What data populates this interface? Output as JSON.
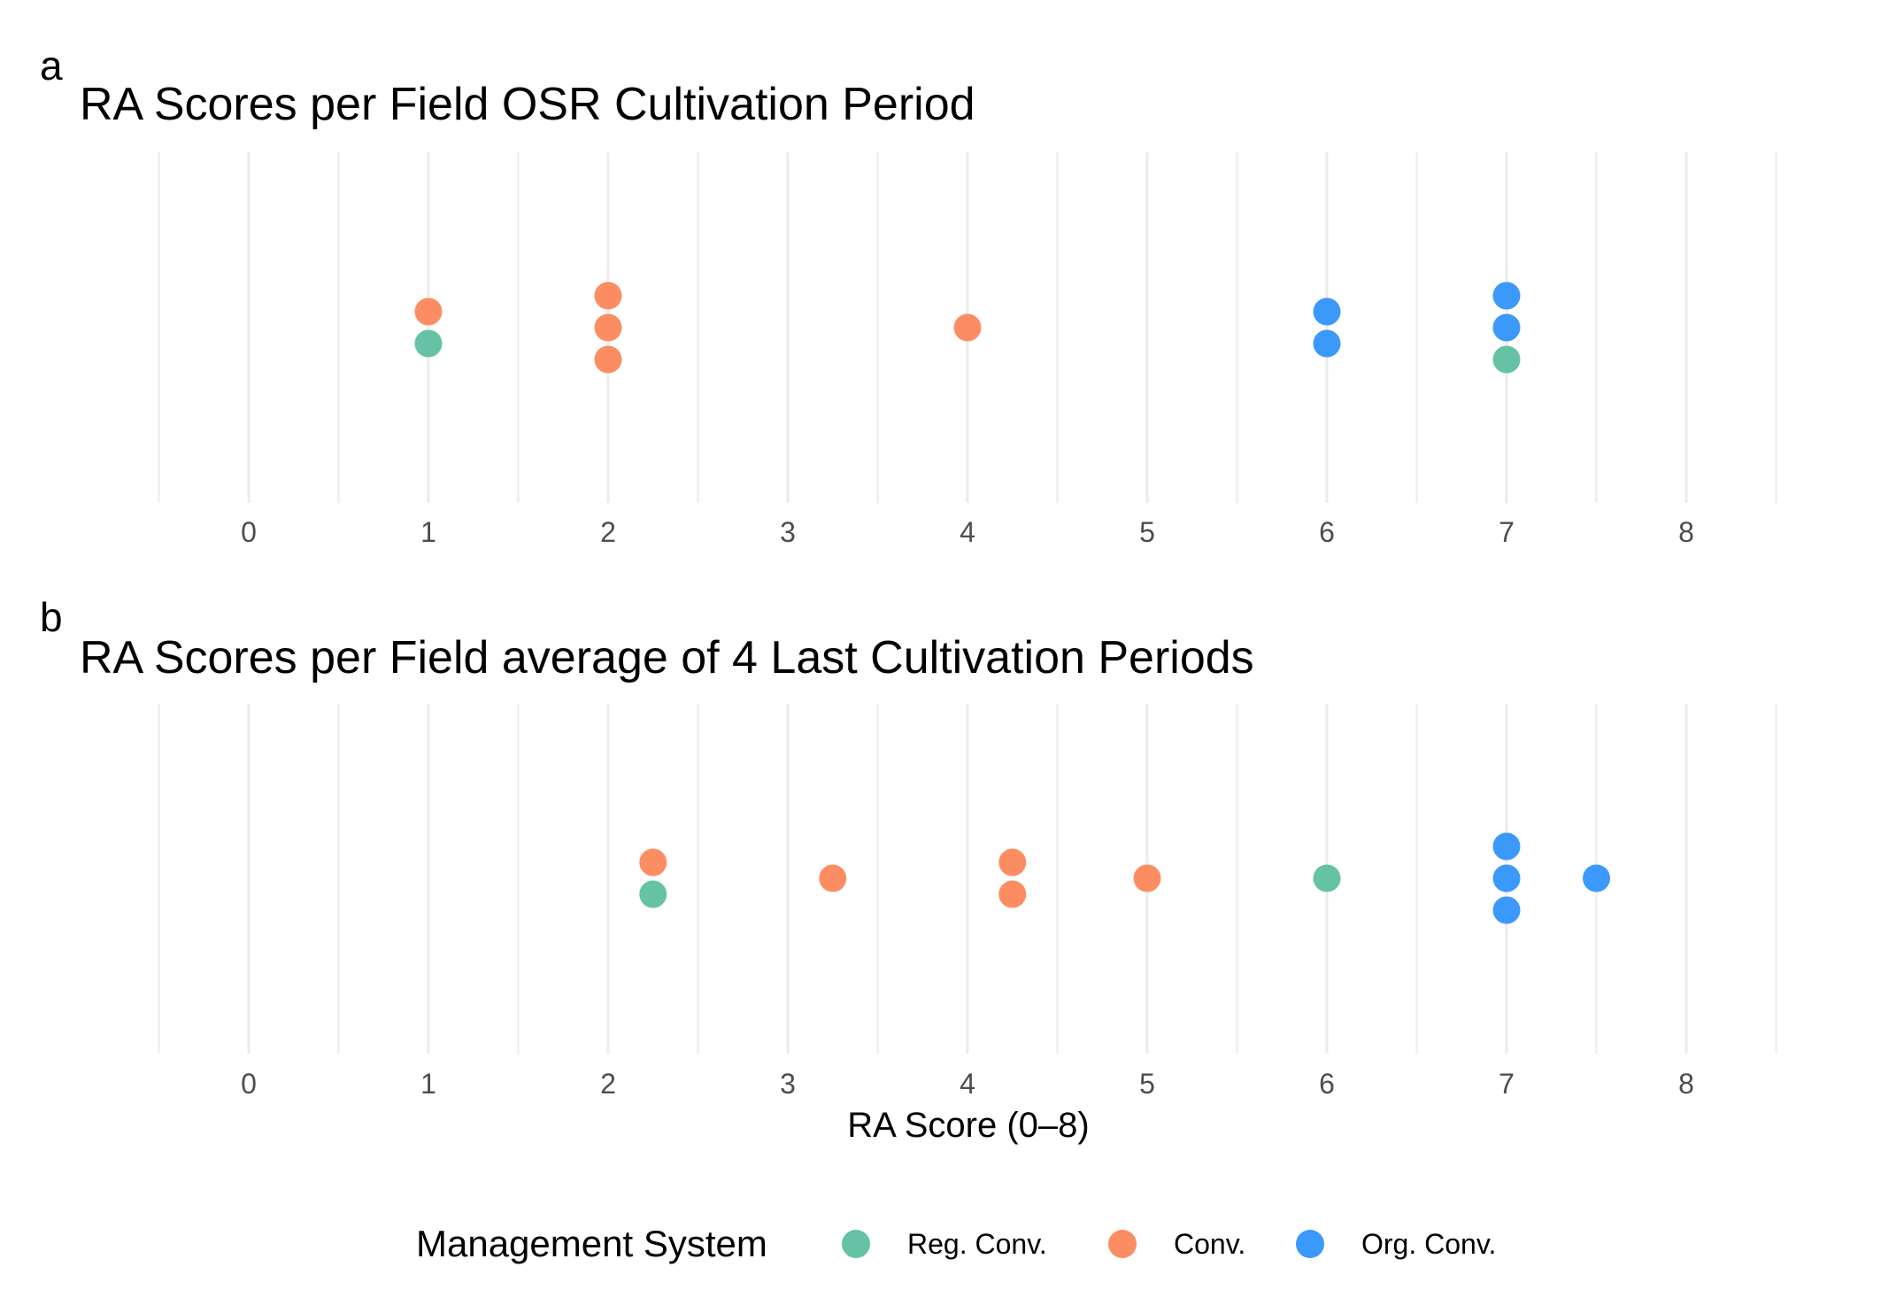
{
  "chart_data": [
    {
      "type": "scatter",
      "panel": "a",
      "title": "RA Scores per Field OSR Cultivation Period",
      "xlabel": "",
      "xlim": [
        -0.5,
        8.5
      ],
      "xticks": [
        "0",
        "1",
        "2",
        "3",
        "4",
        "5",
        "6",
        "7",
        "8"
      ],
      "grid": true,
      "points": [
        {
          "x": 1,
          "series": "Conv."
        },
        {
          "x": 1,
          "series": "Reg. Conv."
        },
        {
          "x": 2,
          "series": "Conv."
        },
        {
          "x": 2,
          "series": "Conv."
        },
        {
          "x": 2,
          "series": "Conv."
        },
        {
          "x": 4,
          "series": "Conv."
        },
        {
          "x": 6,
          "series": "Org. Conv."
        },
        {
          "x": 6,
          "series": "Org. Conv."
        },
        {
          "x": 7,
          "series": "Org. Conv."
        },
        {
          "x": 7,
          "series": "Org. Conv."
        },
        {
          "x": 7,
          "series": "Reg. Conv."
        }
      ]
    },
    {
      "type": "scatter",
      "panel": "b",
      "title": "RA Scores per Field average of 4 Last Cultivation Periods",
      "xlabel": "RA Score (0–8)",
      "xlim": [
        -0.5,
        8.5
      ],
      "xticks": [
        "0",
        "1",
        "2",
        "3",
        "4",
        "5",
        "6",
        "7",
        "8"
      ],
      "grid": true,
      "points": [
        {
          "x": 2.25,
          "series": "Conv."
        },
        {
          "x": 2.25,
          "series": "Reg. Conv."
        },
        {
          "x": 3.25,
          "series": "Conv."
        },
        {
          "x": 4.25,
          "series": "Conv."
        },
        {
          "x": 4.25,
          "series": "Conv."
        },
        {
          "x": 5,
          "series": "Conv."
        },
        {
          "x": 6,
          "series": "Reg. Conv."
        },
        {
          "x": 7,
          "series": "Org. Conv."
        },
        {
          "x": 7,
          "series": "Org. Conv."
        },
        {
          "x": 7,
          "series": "Org. Conv."
        },
        {
          "x": 7.5,
          "series": "Org. Conv."
        }
      ]
    }
  ],
  "legend": {
    "title": "Management System",
    "position": "bottom",
    "items": [
      {
        "label": "Reg. Conv.",
        "color": "#66c2a5"
      },
      {
        "label": "Conv.",
        "color": "#fc8d62"
      },
      {
        "label": "Org. Conv.",
        "color": "#3b99fc"
      }
    ]
  }
}
